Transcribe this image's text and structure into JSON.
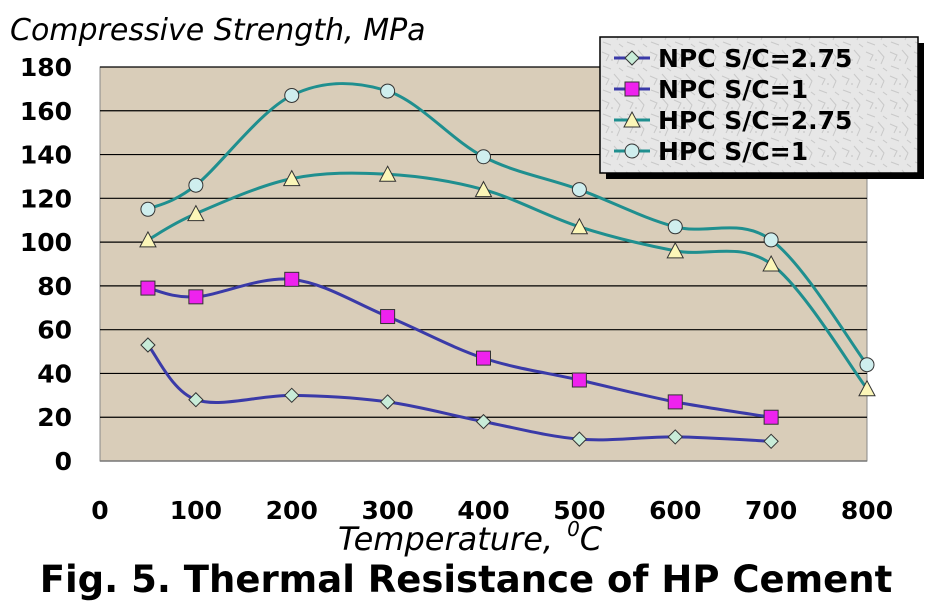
{
  "chart_data": {
    "type": "line",
    "title": "",
    "ylabel": "Compressive Strength, MPa",
    "xlabel_main": "Temperature,",
    "xlabel_sup": "0",
    "xlabel_unit": "C",
    "caption": "Fig. 5. Thermal Resistance of HP Cement",
    "xlim": [
      0,
      800
    ],
    "ylim": [
      0,
      180
    ],
    "xticks": [
      0,
      100,
      200,
      300,
      400,
      500,
      600,
      700,
      800
    ],
    "yticks": [
      0,
      20,
      40,
      60,
      80,
      100,
      120,
      140,
      160,
      180
    ],
    "grid": true,
    "legend_position": "top-right",
    "series": [
      {
        "name": "NPC S/C=2.75",
        "marker": "diamond",
        "line_color": "#3a3aa8",
        "marker_fill": "#c8ecd8",
        "x": [
          50,
          100,
          200,
          300,
          400,
          500,
          600,
          700
        ],
        "values": [
          53,
          28,
          30,
          27,
          18,
          10,
          11,
          9
        ]
      },
      {
        "name": "NPC S/C=1",
        "marker": "square",
        "line_color": "#3a3aa8",
        "marker_fill": "#ee22ee",
        "x": [
          50,
          100,
          200,
          300,
          400,
          500,
          600,
          700
        ],
        "values": [
          79,
          75,
          83,
          66,
          47,
          37,
          27,
          20
        ]
      },
      {
        "name": "HPC S/C=2.75",
        "marker": "triangle",
        "line_color": "#1f8f8f",
        "marker_fill": "#fbf6b8",
        "x": [
          50,
          100,
          200,
          300,
          400,
          500,
          600,
          700,
          800
        ],
        "values": [
          101,
          113,
          129,
          131,
          124,
          107,
          96,
          90,
          33
        ]
      },
      {
        "name": "HPC S/C=1",
        "marker": "circle",
        "line_color": "#1f8f8f",
        "marker_fill": "#cfeeee",
        "x": [
          50,
          100,
          200,
          300,
          400,
          500,
          600,
          700,
          800
        ],
        "values": [
          115,
          126,
          167,
          169,
          139,
          124,
          107,
          101,
          44
        ]
      }
    ]
  },
  "colors": {
    "plot_background": "#d9cdb9",
    "gridline": "#000000",
    "legend_background": "#e6e6e6"
  }
}
